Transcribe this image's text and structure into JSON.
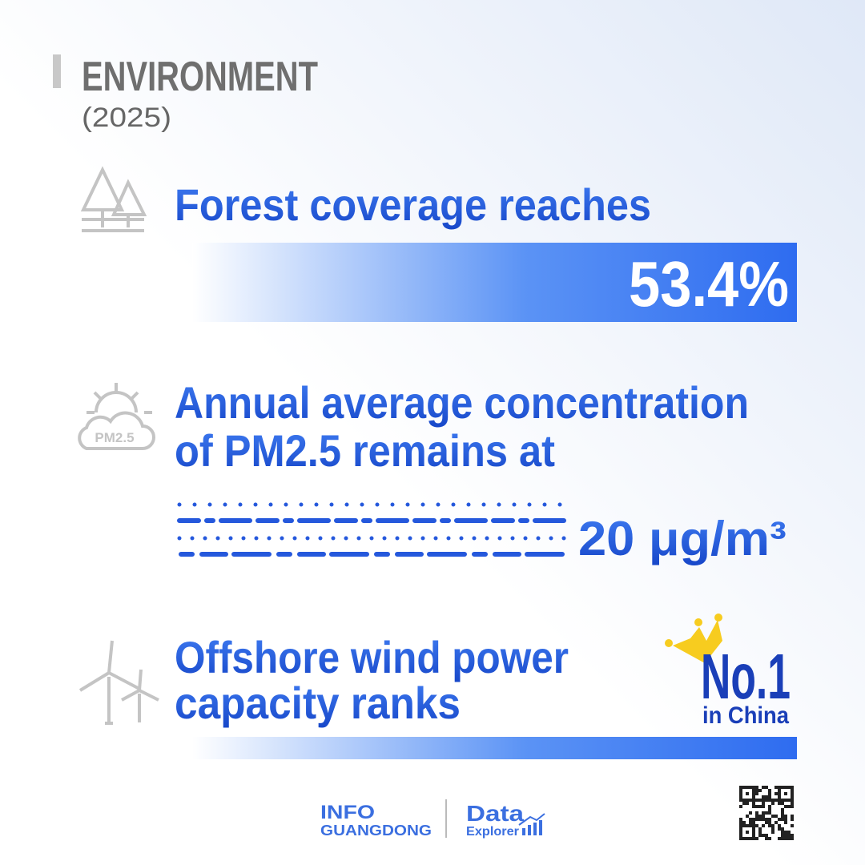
{
  "header": {
    "title": "ENVIRONMENT",
    "year": "(2025)"
  },
  "items": [
    {
      "lines": [
        "Forest coverage reaches"
      ],
      "value": "53.4%"
    },
    {
      "icon_label": "PM2.5",
      "lines": [
        "Annual average concentration",
        "of PM2.5 remains at"
      ],
      "value": "20 μg/m³"
    },
    {
      "lines": [
        "Offshore wind power",
        "capacity ranks"
      ],
      "value": "No.1",
      "value_note": "in China"
    }
  ],
  "footer": {
    "brand_top": "INFO",
    "brand_bottom": "GUANGDONG",
    "logo_top": "Data",
    "logo_bottom": "Explorer"
  }
}
